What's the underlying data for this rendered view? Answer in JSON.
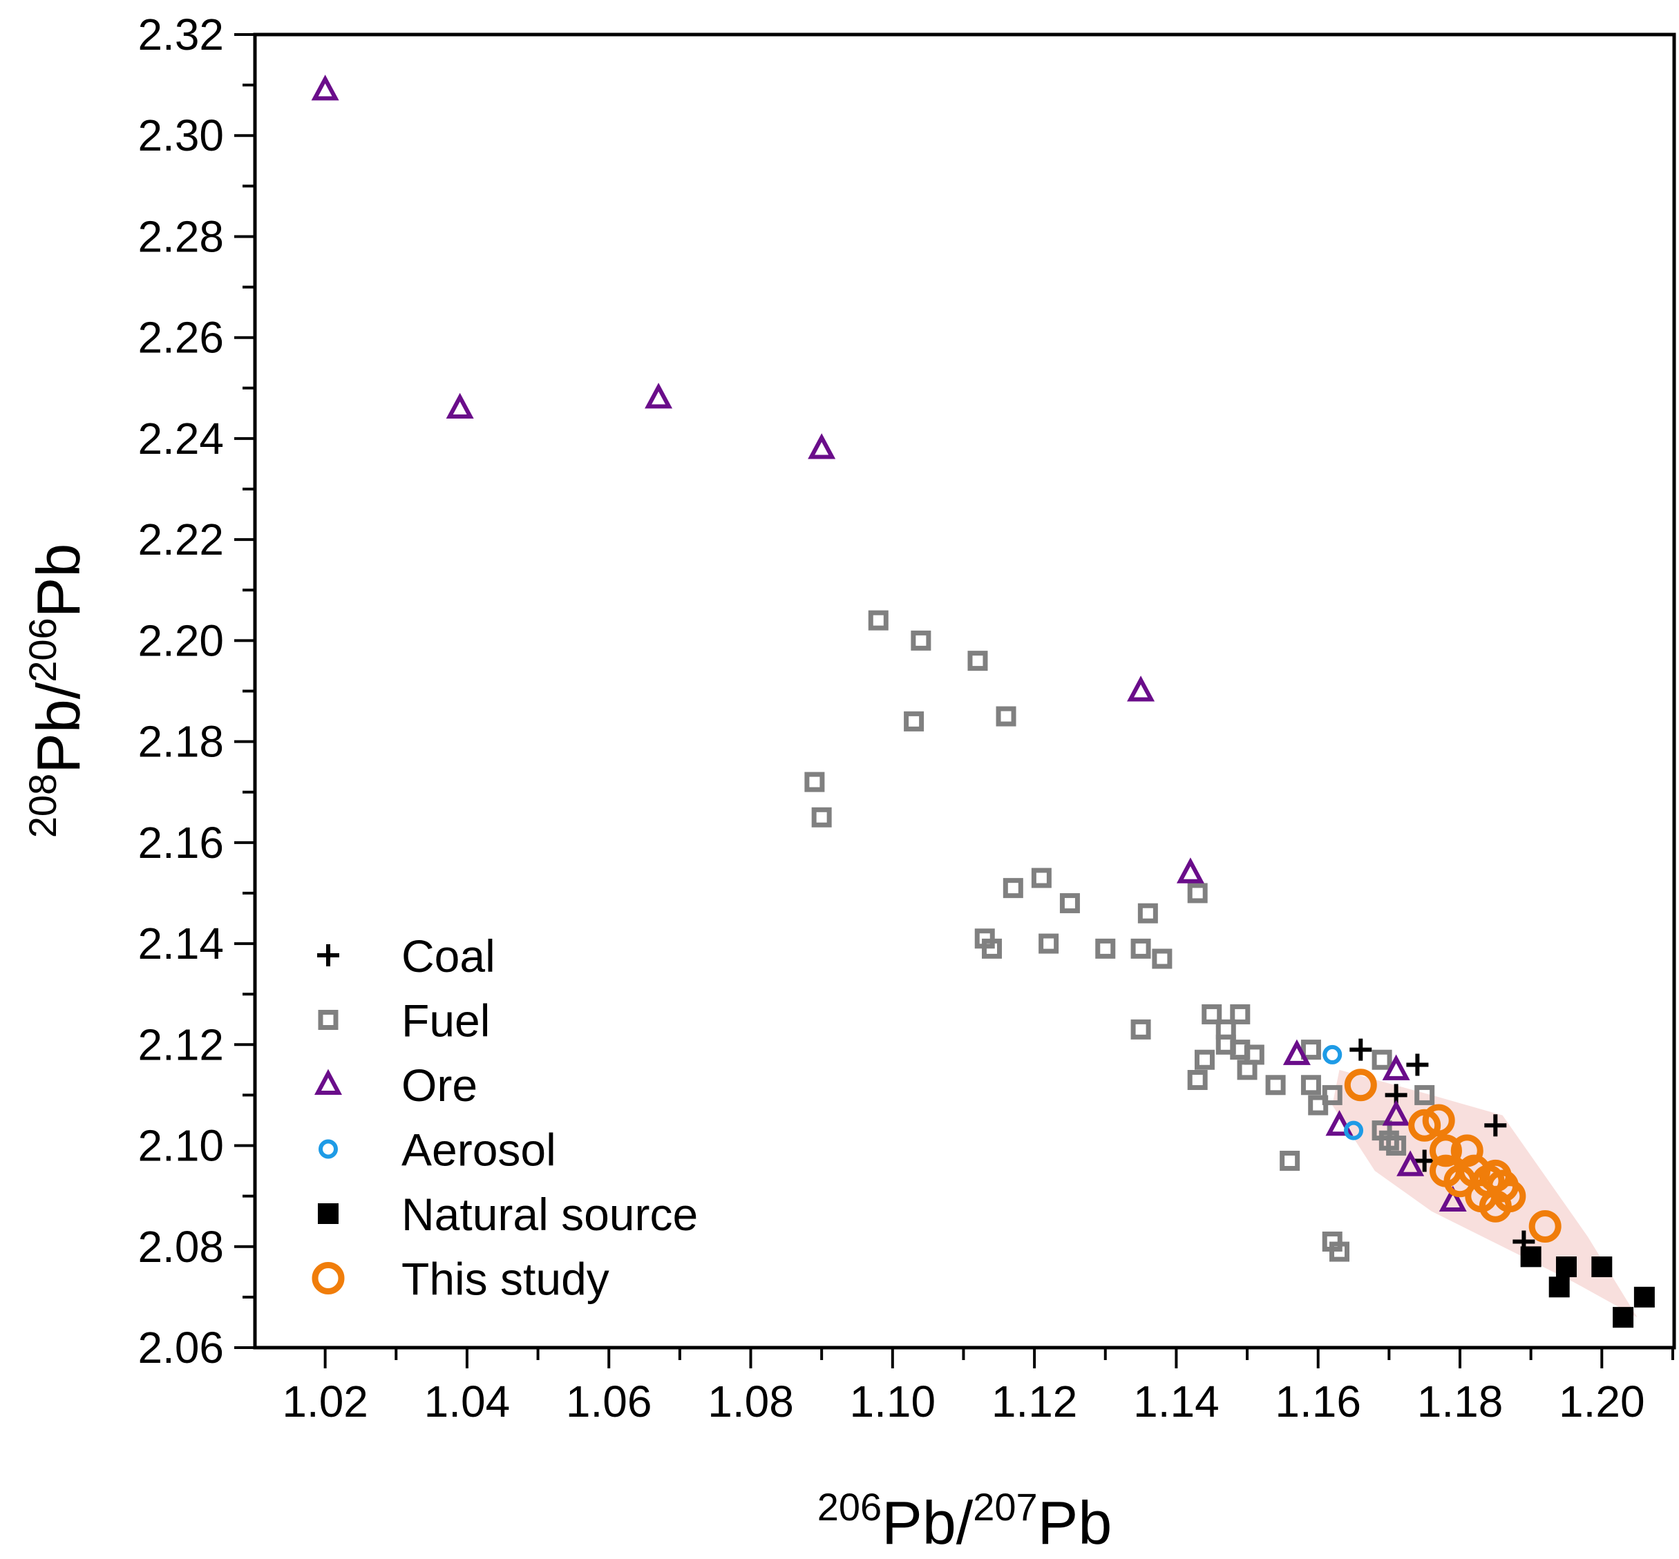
{
  "chart_data": {
    "type": "scatter",
    "title": "",
    "xlabel": {
      "pre_sup": "206",
      "main": "Pb/",
      "mid_sup": "207",
      "end": "Pb"
    },
    "ylabel": {
      "pre_sup": "208",
      "main": "Pb/",
      "mid_sup": "206",
      "end": "Pb"
    },
    "xlim": [
      1.0101,
      1.2102
    ],
    "ylim": [
      2.06,
      2.32
    ],
    "xticks": [
      "1.02",
      "1.04",
      "1.06",
      "1.08",
      "1.10",
      "1.12",
      "1.14",
      "1.16",
      "1.18",
      "1.20"
    ],
    "yticks": [
      "2.06",
      "2.08",
      "2.10",
      "2.12",
      "2.14",
      "2.16",
      "2.18",
      "2.20",
      "2.22",
      "2.24",
      "2.26",
      "2.28",
      "2.30",
      "2.32"
    ],
    "grid": false,
    "legend_position": "bottom-left",
    "series": [
      {
        "name": "Coal",
        "marker": "plus",
        "color": "#000000",
        "points": [
          [
            1.166,
            2.119
          ],
          [
            1.174,
            2.116
          ],
          [
            1.171,
            2.11
          ],
          [
            1.185,
            2.104
          ],
          [
            1.175,
            2.097
          ],
          [
            1.189,
            2.081
          ]
        ]
      },
      {
        "name": "Fuel",
        "marker": "square-open",
        "color": "#808080",
        "points": [
          [
            1.098,
            2.204
          ],
          [
            1.104,
            2.2
          ],
          [
            1.112,
            2.196
          ],
          [
            1.103,
            2.184
          ],
          [
            1.116,
            2.185
          ],
          [
            1.089,
            2.172
          ],
          [
            1.09,
            2.165
          ],
          [
            1.117,
            2.151
          ],
          [
            1.121,
            2.153
          ],
          [
            1.125,
            2.148
          ],
          [
            1.113,
            2.141
          ],
          [
            1.114,
            2.139
          ],
          [
            1.122,
            2.14
          ],
          [
            1.13,
            2.139
          ],
          [
            1.135,
            2.139
          ],
          [
            1.136,
            2.146
          ],
          [
            1.138,
            2.137
          ],
          [
            1.143,
            2.15
          ],
          [
            1.135,
            2.123
          ],
          [
            1.145,
            2.126
          ],
          [
            1.149,
            2.126
          ],
          [
            1.147,
            2.123
          ],
          [
            1.147,
            2.12
          ],
          [
            1.149,
            2.119
          ],
          [
            1.151,
            2.118
          ],
          [
            1.144,
            2.117
          ],
          [
            1.143,
            2.113
          ],
          [
            1.15,
            2.115
          ],
          [
            1.154,
            2.112
          ],
          [
            1.156,
            2.097
          ],
          [
            1.159,
            2.119
          ],
          [
            1.159,
            2.112
          ],
          [
            1.16,
            2.108
          ],
          [
            1.162,
            2.11
          ],
          [
            1.162,
            2.081
          ],
          [
            1.163,
            2.079
          ],
          [
            1.169,
            2.117
          ],
          [
            1.169,
            2.103
          ],
          [
            1.171,
            2.1
          ],
          [
            1.175,
            2.11
          ],
          [
            1.17,
            2.101
          ]
        ]
      },
      {
        "name": "Ore",
        "marker": "triangle-open",
        "color": "#6a0d8a",
        "points": [
          [
            1.02,
            2.309
          ],
          [
            1.039,
            2.246
          ],
          [
            1.067,
            2.248
          ],
          [
            1.09,
            2.238
          ],
          [
            1.135,
            2.19
          ],
          [
            1.142,
            2.154
          ],
          [
            1.157,
            2.118
          ],
          [
            1.171,
            2.115
          ],
          [
            1.171,
            2.106
          ],
          [
            1.163,
            2.104
          ],
          [
            1.173,
            2.096
          ],
          [
            1.179,
            2.089
          ]
        ]
      },
      {
        "name": "Aerosol",
        "marker": "circle-open-small",
        "color": "#1e9be6",
        "points": [
          [
            1.162,
            2.118
          ],
          [
            1.165,
            2.103
          ]
        ]
      },
      {
        "name": "Natural source",
        "marker": "square-filled",
        "color": "#000000",
        "points": [
          [
            1.19,
            2.078
          ],
          [
            1.195,
            2.076
          ],
          [
            1.2,
            2.076
          ],
          [
            1.194,
            2.072
          ],
          [
            1.203,
            2.066
          ],
          [
            1.206,
            2.07
          ]
        ]
      },
      {
        "name": "This study",
        "marker": "circle-open-large",
        "color": "#f07d0a",
        "points": [
          [
            1.166,
            2.112
          ],
          [
            1.175,
            2.104
          ],
          [
            1.177,
            2.105
          ],
          [
            1.178,
            2.099
          ],
          [
            1.181,
            2.099
          ],
          [
            1.178,
            2.095
          ],
          [
            1.182,
            2.095
          ],
          [
            1.185,
            2.094
          ],
          [
            1.186,
            2.092
          ],
          [
            1.183,
            2.09
          ],
          [
            1.185,
            2.088
          ],
          [
            1.187,
            2.09
          ],
          [
            1.192,
            2.084
          ],
          [
            1.18,
            2.093
          ],
          [
            1.184,
            2.093
          ]
        ]
      }
    ],
    "region_color": "#f3c9c6"
  }
}
